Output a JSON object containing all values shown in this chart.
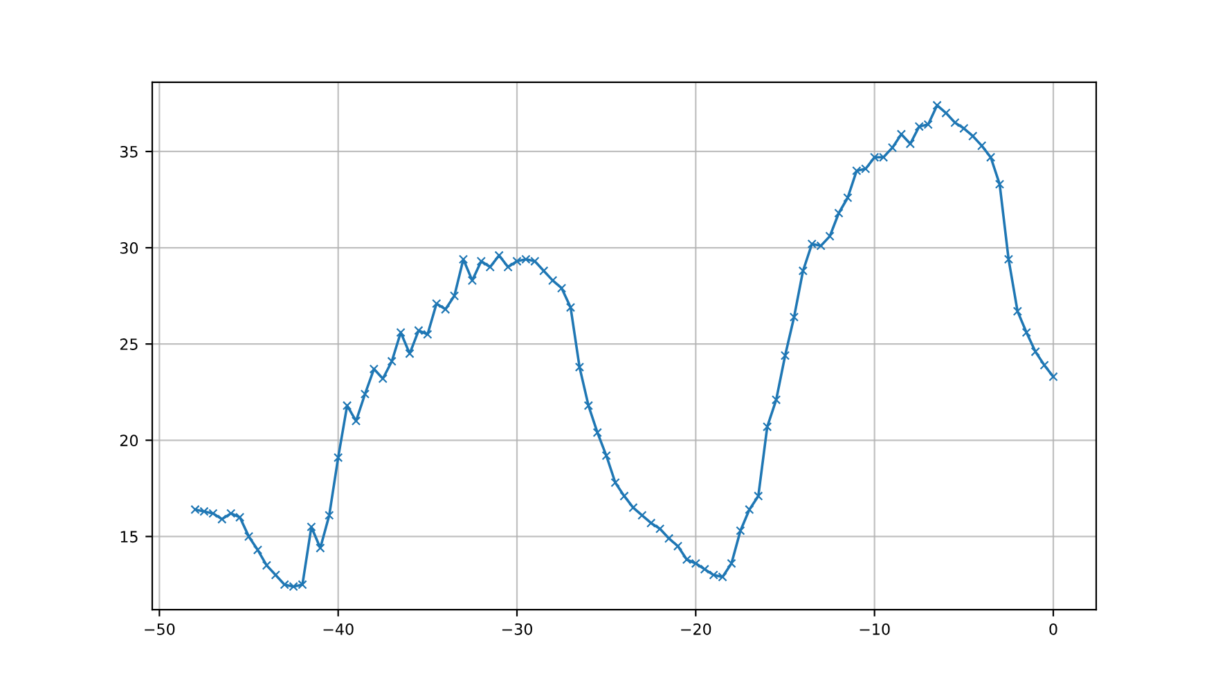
{
  "chart_data": {
    "type": "line",
    "x": [
      -48,
      -47.5,
      -47,
      -46.5,
      -46,
      -45.5,
      -45,
      -44.5,
      -44,
      -43.5,
      -43,
      -42.5,
      -42,
      -41.5,
      -41,
      -40.5,
      -40,
      -39.5,
      -39,
      -38.5,
      -38,
      -37.5,
      -37,
      -36.5,
      -36,
      -35.5,
      -35,
      -34.5,
      -34,
      -33.5,
      -33,
      -32.5,
      -32,
      -31.5,
      -31,
      -30.5,
      -30,
      -29.5,
      -29,
      -28.5,
      -28,
      -27.5,
      -27,
      -26.5,
      -26,
      -25.5,
      -25,
      -24.5,
      -24,
      -23.5,
      -23,
      -22.5,
      -22,
      -21.5,
      -21,
      -20.5,
      -20,
      -19.5,
      -19,
      -18.5,
      -18,
      -17.5,
      -17,
      -16.5,
      -16,
      -15.5,
      -15,
      -14.5,
      -14,
      -13.5,
      -13,
      -12.5,
      -12,
      -11.5,
      -11,
      -10.5,
      -10,
      -9.5,
      -9,
      -8.5,
      -8,
      -7.5,
      -7,
      -6.5,
      -6,
      -5.5,
      -5,
      -4.5,
      -4,
      -3.5,
      -3,
      -2.5,
      -2,
      -1.5,
      -1,
      -0.5,
      0
    ],
    "series": [
      {
        "color": "#1f77b4",
        "values": [
          16.4,
          16.3,
          16.2,
          15.9,
          16.2,
          16.0,
          15.0,
          14.3,
          13.5,
          13.0,
          12.5,
          12.4,
          12.5,
          15.5,
          14.4,
          16.1,
          19.1,
          21.8,
          21.0,
          22.4,
          23.7,
          23.2,
          24.1,
          25.6,
          24.5,
          25.7,
          25.5,
          27.1,
          26.8,
          27.5,
          29.4,
          28.3,
          29.3,
          29.0,
          29.6,
          29.0,
          29.3,
          29.4,
          29.3,
          28.8,
          28.3,
          27.9,
          26.9,
          23.8,
          21.8,
          20.4,
          19.2,
          17.8,
          17.1,
          16.5,
          16.1,
          15.7,
          15.4,
          14.9,
          14.5,
          13.8,
          13.6,
          13.3,
          13.0,
          12.9,
          13.6,
          15.3,
          16.4,
          17.1,
          20.7,
          22.1,
          24.4,
          26.4,
          28.8,
          30.2,
          30.1,
          30.6,
          31.8,
          32.6,
          34.0,
          34.1,
          34.7,
          34.7,
          35.2,
          35.9,
          35.4,
          36.3,
          36.4,
          37.4,
          37.0,
          36.5,
          36.2,
          35.8,
          35.3,
          34.7,
          33.3,
          29.4,
          26.7,
          25.6,
          24.6,
          23.9,
          23.3
        ]
      }
    ],
    "xlim": [
      -50.4,
      2.4
    ],
    "ylim": [
      11.2,
      38.6
    ],
    "xticks": [
      {
        "value": -50,
        "label": "−50"
      },
      {
        "value": -40,
        "label": "−40"
      },
      {
        "value": -30,
        "label": "−30"
      },
      {
        "value": -20,
        "label": "−20"
      },
      {
        "value": -10,
        "label": "−10"
      },
      0
    ],
    "yticks": [
      15,
      20,
      25,
      30,
      35
    ],
    "grid": true,
    "marker": "cross",
    "line_style": "solid"
  }
}
